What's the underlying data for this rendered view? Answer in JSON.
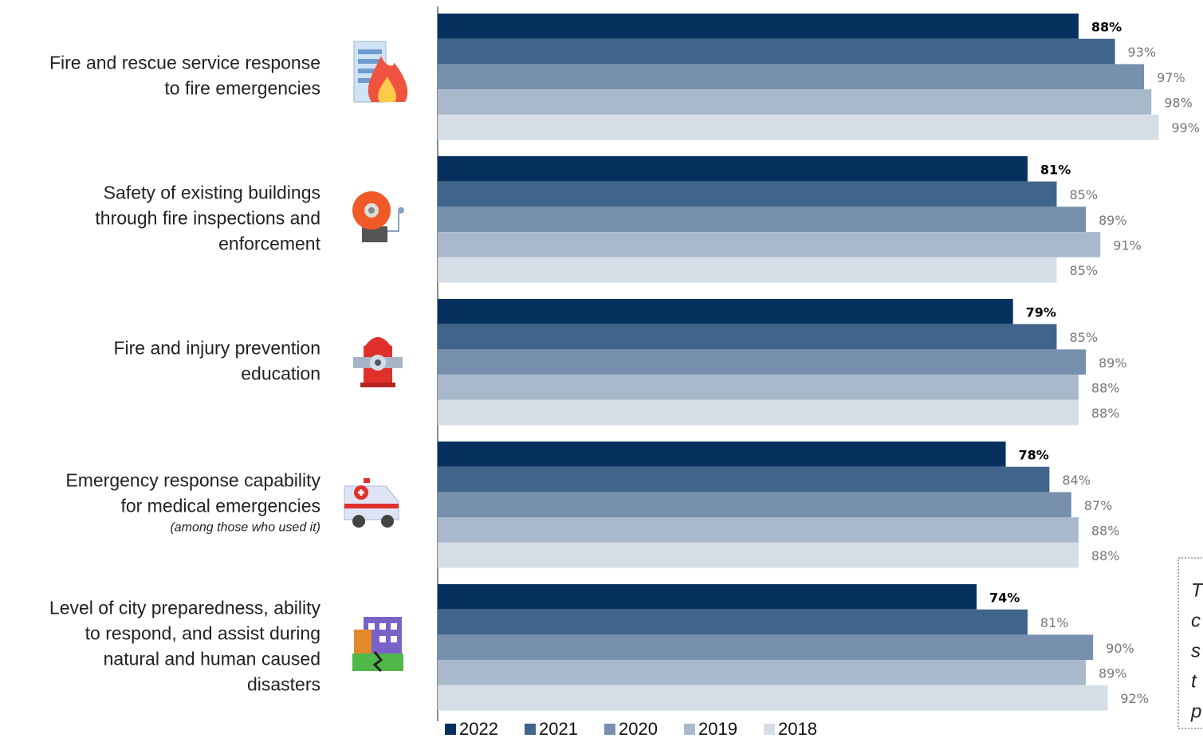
{
  "chart_data": {
    "type": "bar",
    "orientation": "horizontal",
    "categories": [
      [
        "Fire and rescue service response",
        "to fire emergencies"
      ],
      [
        "Safety of existing buildings",
        "through fire inspections and",
        "enforcement"
      ],
      [
        "Fire and injury prevention",
        "education"
      ],
      [
        "Emergency response capability",
        "for medical emergencies"
      ],
      [
        "Level of city preparedness, ability",
        "to respond, and assist during",
        "natural and human caused",
        "disasters"
      ]
    ],
    "category_notes": [
      null,
      null,
      null,
      "(among those who used it)",
      null
    ],
    "xlim": [
      0,
      100
    ],
    "series": [
      {
        "name": "2022",
        "color": "#06305e",
        "values": [
          88,
          81,
          79,
          78,
          74
        ],
        "value_labels": [
          "88%",
          "81%",
          "79%",
          "78%",
          "74%"
        ]
      },
      {
        "name": "2021",
        "color": "#41648a",
        "values": [
          93,
          85,
          85,
          84,
          81
        ],
        "value_labels": [
          "93%",
          "85%",
          "85%",
          "84%",
          "81%"
        ]
      },
      {
        "name": "2020",
        "color": "#7690ad",
        "values": [
          97,
          89,
          89,
          87,
          90
        ],
        "value_labels": [
          "97%",
          "89%",
          "89%",
          "87%",
          "90%"
        ]
      },
      {
        "name": "2019",
        "color": "#a9b9cc",
        "values": [
          98,
          91,
          88,
          88,
          89
        ],
        "value_labels": [
          "98%",
          "91%",
          "88%",
          "88%",
          "89%"
        ]
      },
      {
        "name": "2018",
        "color": "#d5dde6",
        "values": [
          99,
          85,
          88,
          88,
          92
        ],
        "value_labels": [
          "99%",
          "85%",
          "88%",
          "88%",
          "92%"
        ]
      }
    ],
    "legend": "bottom",
    "note": [
      "T",
      "c",
      "s",
      "t",
      "p"
    ]
  }
}
